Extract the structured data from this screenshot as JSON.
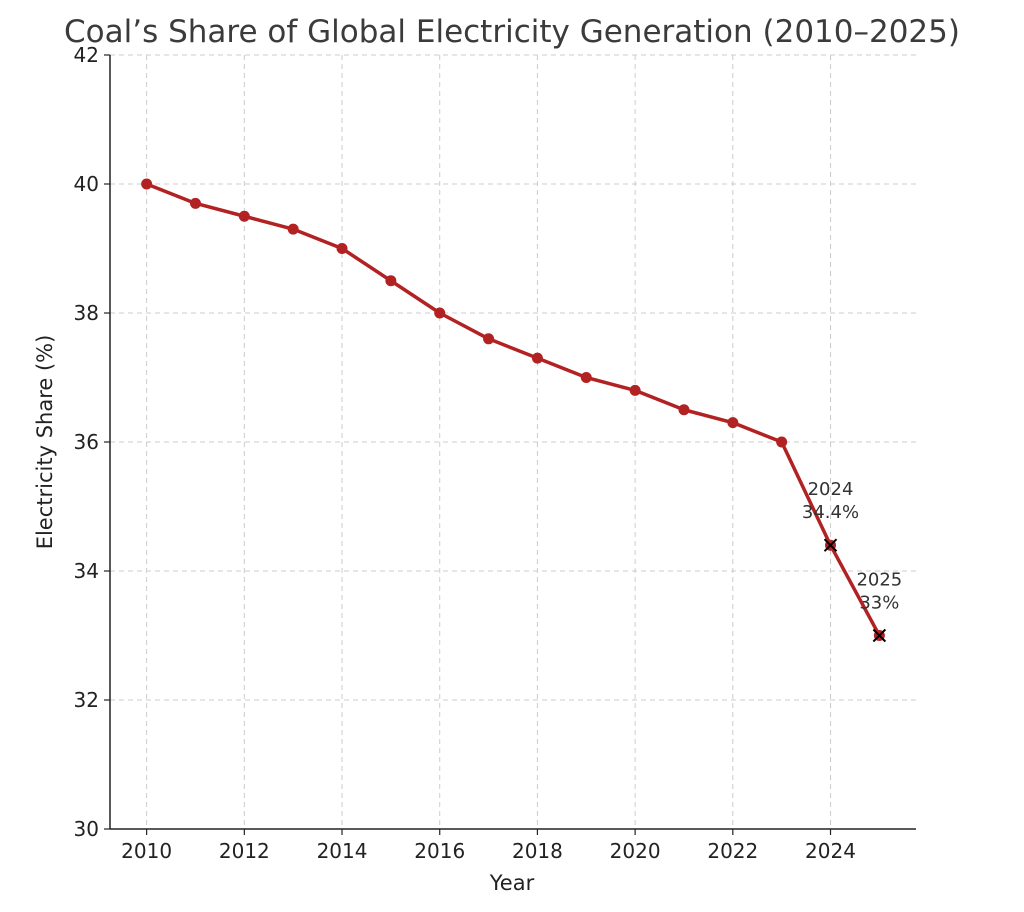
{
  "chart_data": {
    "type": "line",
    "title": "Coal’s Share of Global Electricity Generation (2010–2025)",
    "xlabel": "Year",
    "ylabel": "Electricity Share (%)",
    "x": [
      2010,
      2011,
      2012,
      2013,
      2014,
      2015,
      2016,
      2017,
      2018,
      2019,
      2020,
      2021,
      2022,
      2023,
      2024,
      2025
    ],
    "series": [
      {
        "values": [
          40.0,
          39.7,
          39.5,
          39.3,
          39.0,
          38.5,
          38.0,
          37.6,
          37.3,
          37.0,
          36.8,
          36.5,
          36.3,
          36.0,
          34.4,
          33.0
        ],
        "color": "#b22222"
      }
    ],
    "xlim": [
      2009.25,
      2025.75
    ],
    "ylim": [
      30,
      42
    ],
    "xticks": [
      2010,
      2012,
      2014,
      2016,
      2018,
      2020,
      2022,
      2024
    ],
    "yticks": [
      30,
      32,
      34,
      36,
      38,
      40,
      42
    ],
    "grid": true,
    "annotations": [
      {
        "x": 2024,
        "y": 34.4,
        "lines": [
          "2024",
          "34.4%"
        ]
      },
      {
        "x": 2025,
        "y": 33.0,
        "lines": [
          "2025",
          "33%"
        ]
      }
    ],
    "highlight_marker_color": "#000000"
  }
}
